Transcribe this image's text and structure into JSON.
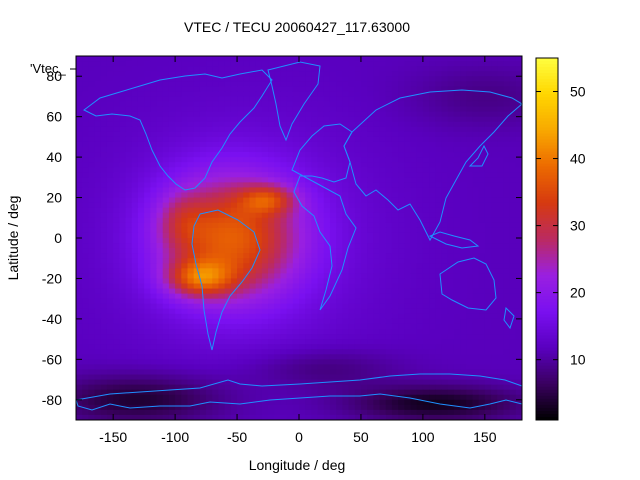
{
  "chart_data": {
    "type": "heatmap",
    "title": "VTEC / TECU 20060427_117.63000",
    "xlabel": "Longitude / deg",
    "ylabel": "Latitude / deg",
    "legend_key_label": "'Vtec_",
    "xlim": [
      -180,
      180
    ],
    "ylim": [
      -90,
      90
    ],
    "xticks": [
      -150,
      -100,
      -50,
      0,
      50,
      100,
      150
    ],
    "yticks": [
      -80,
      -60,
      -40,
      -20,
      0,
      20,
      40,
      60,
      80
    ],
    "colorbar": {
      "min": 1,
      "max": 55,
      "ticks": [
        10,
        20,
        30,
        40,
        50
      ],
      "palette": [
        "#000000",
        "#3a0060",
        "#5a00c0",
        "#7a10f0",
        "#9a20e0",
        "#bb2a60",
        "#d63a10",
        "#ec6a00",
        "#f8a800",
        "#ffd600",
        "#ffff40"
      ]
    },
    "grid_resolution_deg": {
      "lon": 5,
      "lat": 2.5
    },
    "description_of_field": {
      "background_level_tecu": 11,
      "features": [
        {
          "name": "equatorial-anomaly-south",
          "lon": -80,
          "lat": -20,
          "peak_tecu": 48
        },
        {
          "name": "equatorial-anomaly-north",
          "lon": -25,
          "lat": 20,
          "peak_tecu": 42
        },
        {
          "name": "daytime-bulge",
          "lon": -60,
          "lat": 0,
          "peak_tecu": 34
        },
        {
          "name": "south-polar-low",
          "lon": 100,
          "lat": -80,
          "min_tecu": 2
        }
      ]
    }
  }
}
